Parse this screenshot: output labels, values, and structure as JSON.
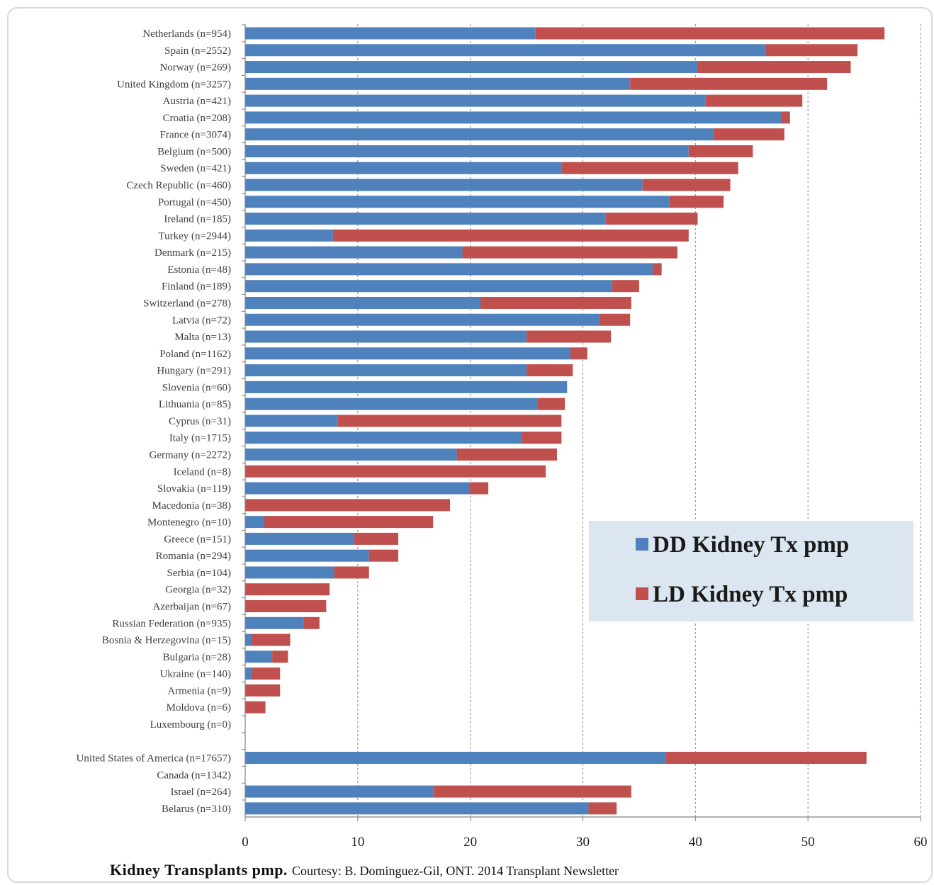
{
  "chart_data": {
    "type": "bar",
    "orientation": "horizontal",
    "stacked": true,
    "xlabel": "Kidney Transplants pmp.",
    "credit": "Courtesy: B. Dominguez-Gil, ONT. 2014 Transplant Newsletter",
    "xlim": [
      0,
      60
    ],
    "xticks": [
      "0",
      "10",
      "20",
      "30",
      "40",
      "50",
      "60"
    ],
    "grid": "vertical dashed",
    "legend_position": "lower-right",
    "categories": [
      "Netherlands (n=954)",
      "Spain (n=2552)",
      "Norway (n=269)",
      "United Kingdom (n=3257)",
      "Austria (n=421)",
      "Croatia (n=208)",
      "France (n=3074)",
      "Belgium (n=500)",
      "Sweden (n=421)",
      "Czech Republic (n=460)",
      "Portugal (n=450)",
      "Ireland (n=185)",
      "Turkey (n=2944)",
      "Denmark (n=215)",
      "Estonia (n=48)",
      "Finland (n=189)",
      "Switzerland (n=278)",
      "Latvia (n=72)",
      "Malta (n=13)",
      "Poland (n=1162)",
      "Hungary (n=291)",
      "Slovenia (n=60)",
      "Lithuania (n=85)",
      "Cyprus (n=31)",
      "Italy (n=1715)",
      "Germany (n=2272)",
      "Iceland (n=8)",
      "Slovakia (n=119)",
      "Macedonia (n=38)",
      "Montenegro (n=10)",
      "Greece (n=151)",
      "Romania (n=294)",
      "Serbia (n=104)",
      "Georgia (n=32)",
      "Azerbaijan (n=67)",
      "Russian Federation (n=935)",
      "Bosnia & Herzegovina (n=15)",
      "Bulgaria (n=28)",
      "Ukraine (n=140)",
      "Armenia (n=9)",
      "Moldova (n=6)",
      "Luxembourg (n=0)",
      "",
      "United States of America (n=17657)",
      "Canada (n=1342)",
      "Israel (n=264)",
      "Belarus (n=310)"
    ],
    "series": [
      {
        "name": "DD Kidney Tx pmp",
        "color": "#4f81bd",
        "values": [
          25.8,
          46.2,
          40.2,
          34.2,
          40.9,
          47.6,
          41.6,
          39.4,
          28.1,
          35.3,
          37.7,
          32.0,
          7.8,
          19.3,
          36.2,
          32.6,
          20.9,
          31.5,
          25.0,
          28.9,
          25.0,
          28.6,
          26.0,
          8.2,
          24.5,
          18.8,
          0,
          19.9,
          0,
          1.7,
          9.7,
          11.0,
          7.9,
          0,
          0,
          5.2,
          0.6,
          2.4,
          0.6,
          0,
          0,
          0,
          null,
          37.4,
          0,
          16.7,
          30.5
        ],
        "_note": ""
      },
      {
        "name": "LD Kidney Tx pmp",
        "color": "#c0504d",
        "values": [
          31.0,
          8.2,
          13.6,
          17.5,
          8.6,
          0.8,
          6.3,
          5.7,
          15.7,
          7.8,
          4.8,
          8.2,
          31.6,
          19.1,
          0.8,
          2.4,
          13.4,
          2.7,
          7.5,
          1.5,
          4.1,
          0,
          2.4,
          19.9,
          3.6,
          8.9,
          26.7,
          1.7,
          18.2,
          15.0,
          3.9,
          2.6,
          3.1,
          7.5,
          7.2,
          1.4,
          3.4,
          1.4,
          2.5,
          3.1,
          1.8,
          0,
          null,
          17.8,
          0,
          17.6,
          2.5
        ]
      }
    ]
  }
}
